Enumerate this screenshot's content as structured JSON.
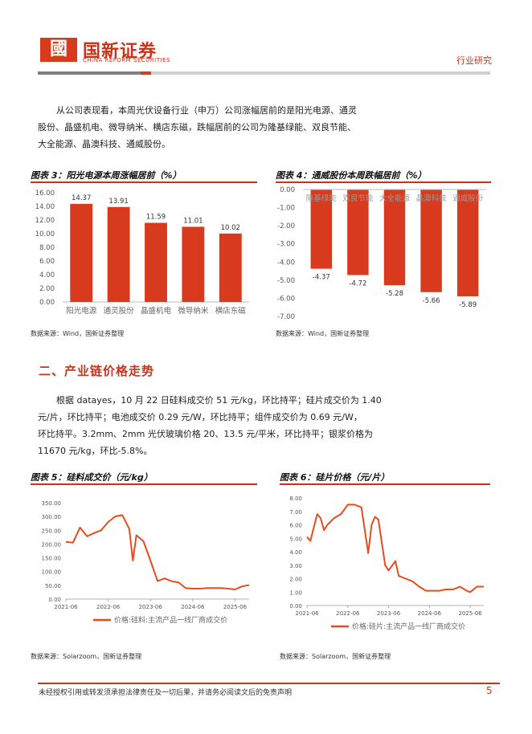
{
  "header": {
    "logo_mark": "國",
    "brand_cn": "国新证券",
    "brand_en": "CHINA REFORM SECURITIES",
    "section_tag": "行业研究"
  },
  "intro": {
    "line1": "从公司表现看，本周光伏设备行业（申万）公司涨幅居前的是阳光电源、通灵",
    "line2": "股份、晶盛机电、微导纳米、横店东磁，跌幅居前的公司为隆基绿能、双良节能、",
    "line3": "大全能源、晶澳科技、通威股份。"
  },
  "figure3": {
    "title": "图表 3：阳光电源本周涨幅居前（%）",
    "source": "数据来源：Wind，国新证券整理"
  },
  "figure4": {
    "title": "图表 4：通威股份本周跌幅居前（%）",
    "source": "数据来源：Wind，国新证券整理"
  },
  "section2": {
    "title": "二、产业链价格走势",
    "line1": "根据 datayes，10 月 22 日硅料成交价 51 元/kg，环比持平；硅片成交价为 1.40",
    "line2": "元/片，环比持平；电池成交价 0.29 元/W，环比持平；组件成交价为 0.69 元/W，",
    "line3": "环比持平。3.2mm、2mm 光伏玻璃价格 20、13.5 元/平米，环比持平；银浆价格为",
    "line4": "11670 元/kg，环比-5.8%。"
  },
  "figure5": {
    "title": "图表 5：硅料成交价（元/kg）",
    "source": "数据来源：Solarzoom，国新证券整理"
  },
  "figure6": {
    "title": "图表 6：硅片价格（元/片）",
    "source": "数据来源：Solarzoom，国新证券整理"
  },
  "footer": {
    "disclaimer": "未经授权引用或转发须承担法律责任及一切后果，并请务必阅读文后的免责声明",
    "page": "5"
  },
  "colors": {
    "accent": "#d83a1d",
    "line": "#e84c1e"
  },
  "chart_data": [
    {
      "type": "bar",
      "categories": [
        "阳光电源",
        "通灵股份",
        "晶盛机电",
        "微导纳米",
        "横店东磁"
      ],
      "values": [
        14.37,
        13.91,
        11.59,
        11.01,
        10.02
      ],
      "value_labels": [
        "14.37",
        "13.91",
        "11.59",
        "11.01",
        "10.02"
      ],
      "ylim": [
        0,
        16
      ],
      "yticks": [
        "0.00",
        "2.00",
        "4.00",
        "6.00",
        "8.00",
        "10.00",
        "12.00",
        "14.00",
        "16.00"
      ],
      "grid": false
    },
    {
      "type": "bar",
      "categories": [
        "隆基绿能",
        "双良节能",
        "大全能源",
        "晶澳科技",
        "通威股份"
      ],
      "values": [
        -4.37,
        -4.72,
        -5.28,
        -5.66,
        -5.89
      ],
      "value_labels": [
        "-4.37",
        "-4.72",
        "-5.28",
        "-5.66",
        "-5.89"
      ],
      "ylim": [
        -7,
        0
      ],
      "yticks": [
        "0.00",
        "-1.00",
        "-2.00",
        "-3.00",
        "-4.00",
        "-5.00",
        "-6.00",
        "-7.00"
      ],
      "grid": false
    },
    {
      "type": "line",
      "x": [
        "2021-06",
        "2021-08",
        "2021-10",
        "2021-12",
        "2022-02",
        "2022-04",
        "2022-06",
        "2022-08",
        "2022-10",
        "2022-12",
        "2023-01",
        "2023-02",
        "2023-04",
        "2023-06",
        "2023-08",
        "2023-10",
        "2023-12",
        "2024-02",
        "2024-04",
        "2024-06",
        "2024-08",
        "2024-10",
        "2024-12",
        "2025-02",
        "2025-04",
        "2025-06",
        "2025-08",
        "2025-10"
      ],
      "series": [
        {
          "name": "价格:硅料:主流产品一线厂商成交价",
          "values": [
            208,
            205,
            260,
            228,
            240,
            250,
            280,
            300,
            305,
            255,
            140,
            232,
            210,
            140,
            66,
            75,
            65,
            60,
            40,
            38,
            38,
            40,
            40,
            40,
            38,
            35,
            46,
            51
          ]
        }
      ],
      "ylim": [
        0,
        350
      ],
      "yticks": [
        "0.00",
        "50.00",
        "100.00",
        "150.00",
        "200.00",
        "250.00",
        "300.00",
        "350.00"
      ],
      "xticks": [
        "2021-06",
        "2022-06",
        "2023-06",
        "2024-06",
        "2025-06"
      ]
    },
    {
      "type": "line",
      "x": [
        "2021-06",
        "2021-07",
        "2021-09",
        "2021-10",
        "2021-11",
        "2021-12",
        "2022-02",
        "2022-04",
        "2022-06",
        "2022-08",
        "2022-10",
        "2022-12",
        "2023-01",
        "2023-02",
        "2023-03",
        "2023-05",
        "2023-06",
        "2023-08",
        "2023-09",
        "2023-11",
        "2024-01",
        "2024-03",
        "2024-05",
        "2024-07",
        "2024-09",
        "2024-11",
        "2025-01",
        "2025-03",
        "2025-05",
        "2025-06",
        "2025-08",
        "2025-10"
      ],
      "series": [
        {
          "name": "价格:硅片:主流产品一线厂商成交价",
          "values": [
            5.1,
            4.8,
            6.8,
            6.5,
            5.6,
            6.0,
            6.5,
            6.8,
            7.5,
            7.5,
            7.3,
            3.9,
            6.0,
            6.6,
            6.4,
            3.0,
            2.6,
            3.3,
            2.2,
            2.0,
            1.8,
            1.4,
            1.1,
            1.1,
            1.1,
            1.2,
            1.2,
            1.4,
            1.1,
            1.0,
            1.4,
            1.4
          ]
        }
      ],
      "ylim": [
        0,
        8
      ],
      "yticks": [
        "0.00",
        "1.00",
        "2.00",
        "3.00",
        "4.00",
        "5.00",
        "6.00",
        "7.00",
        "8.00"
      ],
      "xticks": [
        "2021-06",
        "2022-06",
        "2023-06",
        "2024-06",
        "2025-06"
      ]
    }
  ]
}
